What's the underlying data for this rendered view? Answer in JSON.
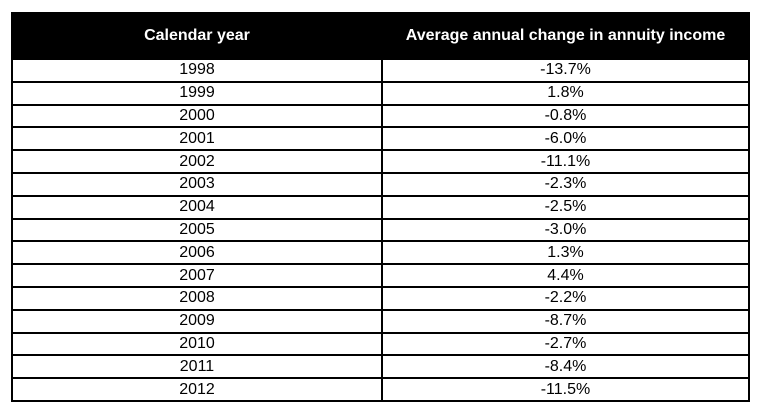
{
  "chart_data": {
    "type": "table",
    "title": "",
    "columns": [
      "Calendar year",
      "Average annual change in annuity income"
    ],
    "rows": [
      [
        "1998",
        "-13.7%"
      ],
      [
        "1999",
        "1.8%"
      ],
      [
        "2000",
        "-0.8%"
      ],
      [
        "2001",
        "-6.0%"
      ],
      [
        "2002",
        "-11.1%"
      ],
      [
        "2003",
        "-2.3%"
      ],
      [
        "2004",
        "-2.5%"
      ],
      [
        "2005",
        "-3.0%"
      ],
      [
        "2006",
        "1.3%"
      ],
      [
        "2007",
        "4.4%"
      ],
      [
        "2008",
        "-2.2%"
      ],
      [
        "2009",
        "-8.7%"
      ],
      [
        "2010",
        "-2.7%"
      ],
      [
        "2011",
        "-8.4%"
      ],
      [
        "2012",
        "-11.5%"
      ]
    ],
    "layout": {
      "header_background": "#000000",
      "header_text_color": "#ffffff",
      "body_background": "#ffffff",
      "border_color": "#000000",
      "grid": "on",
      "values_numeric": {
        "years": [
          1998,
          1999,
          2000,
          2001,
          2002,
          2003,
          2004,
          2005,
          2006,
          2007,
          2008,
          2009,
          2010,
          2011,
          2012
        ],
        "avg_annual_change_pct": [
          -13.7,
          1.8,
          -0.8,
          -6.0,
          -11.1,
          -2.3,
          -2.5,
          -3.0,
          1.3,
          4.4,
          -2.2,
          -8.7,
          -2.7,
          -8.4,
          -11.5
        ]
      }
    }
  }
}
